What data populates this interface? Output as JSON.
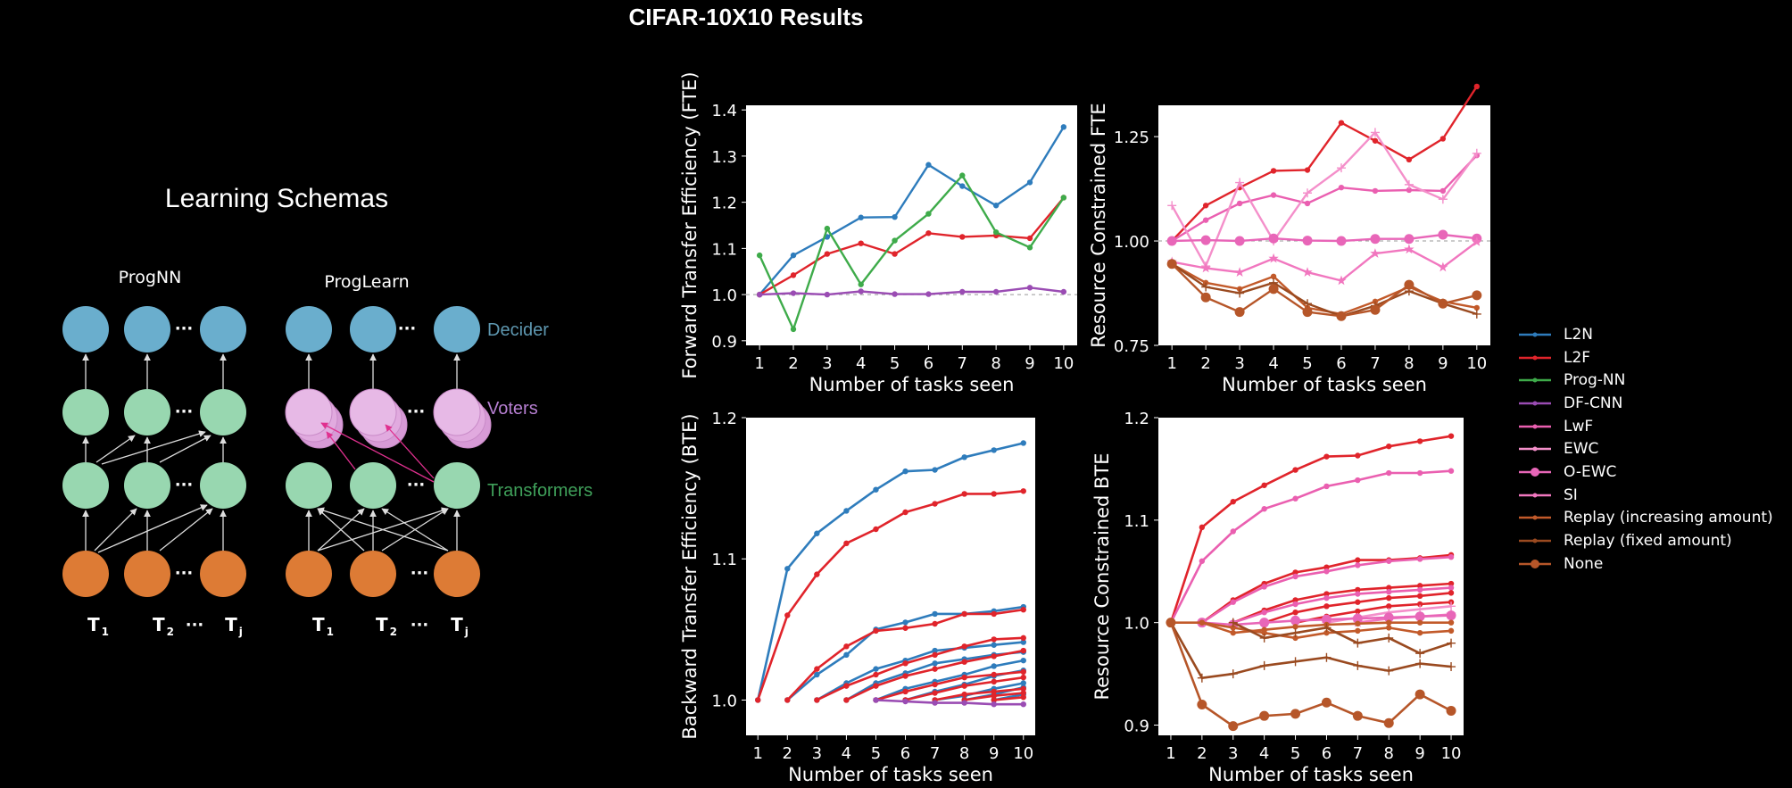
{
  "title": "CIFAR-10X10 Results",
  "schema": {
    "heading": "Learning Schemas",
    "left_label": "ProgNN",
    "right_label": "ProgLearn",
    "ellipsis": "···",
    "tasks": [
      {
        "base": "T",
        "sub": "1"
      },
      {
        "base": "T",
        "sub": "2"
      },
      {
        "base": "T",
        "sub": "j"
      }
    ],
    "layers": [
      {
        "label": "Decider",
        "color": "#5e97b0"
      },
      {
        "label": "Voters",
        "color": "#b67fd1"
      },
      {
        "label": "Transformers",
        "color": "#3fa05a"
      }
    ],
    "node_colors": {
      "decider": "#6aaecd",
      "voter": "#e7b9e6",
      "transformer": "#98d7b0",
      "task": "#dd7b35"
    }
  },
  "chart_data": [
    {
      "type": "line",
      "ylabel": "Forward Transfer Efficiency (FTE)",
      "xlabel": "Number of tasks seen",
      "x": [
        1,
        2,
        3,
        4,
        5,
        6,
        7,
        8,
        9,
        10
      ],
      "xlim": [
        0.6,
        10.4
      ],
      "ylim": [
        0.89,
        1.41
      ],
      "yticks": [
        0.9,
        1.0,
        1.1,
        1.2,
        1.3,
        1.4
      ],
      "ytick_labels": [
        "0.9",
        "1.0",
        "1.1",
        "1.2",
        "1.3",
        "1.4"
      ],
      "baseline": 1.0,
      "series": [
        {
          "name": "L2N",
          "color": "#2e7cbc",
          "values": [
            1.0,
            1.085,
            1.125,
            1.167,
            1.168,
            1.281,
            1.235,
            1.193,
            1.243,
            1.363
          ]
        },
        {
          "name": "L2F",
          "color": "#e0242b",
          "values": [
            1.0,
            1.042,
            1.088,
            1.111,
            1.088,
            1.133,
            1.125,
            1.128,
            1.122,
            1.21
          ]
        },
        {
          "name": "Prog-NN",
          "color": "#3eab4a",
          "values": [
            1.085,
            0.925,
            1.143,
            1.022,
            1.117,
            1.175,
            1.258,
            1.135,
            1.102,
            1.21
          ]
        },
        {
          "name": "DF-CNN",
          "color": "#9a4cb3",
          "values": [
            1.0,
            1.003,
            1.0,
            1.007,
            1.001,
            1.001,
            1.006,
            1.006,
            1.015,
            1.006
          ]
        }
      ]
    },
    {
      "type": "line",
      "ylabel": "Resource Constrained FTE",
      "xlabel": "Number of tasks seen",
      "x": [
        1,
        2,
        3,
        4,
        5,
        6,
        7,
        8,
        9,
        10
      ],
      "xlim": [
        0.6,
        10.4
      ],
      "ylim": [
        0.75,
        1.325
      ],
      "yticks": [
        0.75,
        1.0,
        1.25
      ],
      "ytick_labels": [
        "0.75",
        "1.00",
        "1.25"
      ],
      "baseline": 1.0,
      "series": [
        {
          "name": "L2F",
          "color": "#e0242b",
          "values": [
            1.0,
            1.085,
            1.128,
            1.168,
            1.17,
            1.283,
            1.24,
            1.195,
            1.245,
            1.37
          ]
        },
        {
          "name": "LwF",
          "color": "#ea5fb0",
          "values": [
            1.0,
            1.05,
            1.09,
            1.11,
            1.09,
            1.128,
            1.12,
            1.122,
            1.12,
            1.205
          ]
        },
        {
          "name": "EWC",
          "color": "#f48fca",
          "values": [
            1.085,
            0.94,
            1.14,
            1.0,
            1.115,
            1.175,
            1.26,
            1.135,
            1.1,
            1.21
          ]
        },
        {
          "name": "O-EWC",
          "color": "#e866b8",
          "values": [
            1.0,
            1.002,
            1.0,
            1.006,
            1.001,
            1.0,
            1.005,
            1.005,
            1.015,
            1.006
          ]
        },
        {
          "name": "SI",
          "color": "#f177bf",
          "values": [
            0.95,
            0.935,
            0.925,
            0.958,
            0.925,
            0.905,
            0.97,
            0.98,
            0.937,
            0.998
          ]
        },
        {
          "name": "Replay (increasing amount)",
          "color": "#c25a2a",
          "values": [
            0.945,
            0.9,
            0.885,
            0.915,
            0.84,
            0.825,
            0.855,
            0.89,
            0.855,
            0.84
          ]
        },
        {
          "name": "Replay (fixed amount)",
          "color": "#9a4a20",
          "values": [
            0.945,
            0.89,
            0.875,
            0.9,
            0.85,
            0.82,
            0.845,
            0.88,
            0.85,
            0.825
          ]
        },
        {
          "name": "None",
          "color": "#b65629",
          "values": [
            0.945,
            0.865,
            0.83,
            0.885,
            0.83,
            0.82,
            0.835,
            0.895,
            0.85,
            0.87
          ]
        }
      ]
    },
    {
      "type": "line",
      "ylabel": "Backward Transfer Efficiency (BTE)",
      "xlabel": "Number of tasks seen",
      "x": [
        1,
        2,
        3,
        4,
        5,
        6,
        7,
        8,
        9,
        10
      ],
      "xlim": [
        0.6,
        10.4
      ],
      "ylim": [
        0.975,
        1.2
      ],
      "yticks": [
        1.0,
        1.1,
        1.2
      ],
      "ytick_labels": [
        "1.0",
        "1.1",
        "1.2"
      ],
      "series": [
        {
          "name": "L2N",
          "color": "#2e7cbc",
          "values": [
            1.0,
            1.093,
            1.118,
            1.134,
            1.149,
            1.162,
            1.163,
            1.172,
            1.177,
            1.182
          ]
        },
        {
          "name": "L2N",
          "color": "#2e7cbc",
          "values": [
            null,
            1.0,
            1.018,
            1.032,
            1.05,
            1.055,
            1.061,
            1.061,
            1.063,
            1.066
          ]
        },
        {
          "name": "L2N",
          "color": "#2e7cbc",
          "values": [
            null,
            null,
            1.0,
            1.012,
            1.022,
            1.028,
            1.035,
            1.037,
            1.039,
            1.041
          ]
        },
        {
          "name": "L2N",
          "color": "#2e7cbc",
          "values": [
            null,
            null,
            null,
            1.0,
            1.012,
            1.019,
            1.026,
            1.029,
            1.032,
            1.034
          ]
        },
        {
          "name": "L2N",
          "color": "#2e7cbc",
          "values": [
            null,
            null,
            null,
            null,
            1.0,
            1.008,
            1.013,
            1.018,
            1.024,
            1.028
          ]
        },
        {
          "name": "L2N",
          "color": "#2e7cbc",
          "values": [
            null,
            null,
            null,
            null,
            null,
            1.0,
            1.006,
            1.011,
            1.017,
            1.021
          ]
        },
        {
          "name": "L2N",
          "color": "#2e7cbc",
          "values": [
            null,
            null,
            null,
            null,
            null,
            null,
            1.0,
            1.003,
            1.008,
            1.012
          ]
        },
        {
          "name": "L2N",
          "color": "#2e7cbc",
          "values": [
            null,
            null,
            null,
            null,
            null,
            null,
            null,
            1.0,
            1.004,
            1.009
          ]
        },
        {
          "name": "L2N",
          "color": "#2e7cbc",
          "values": [
            null,
            null,
            null,
            null,
            null,
            null,
            null,
            null,
            1.0,
            1.004
          ]
        },
        {
          "name": "L2F",
          "color": "#e0242b",
          "values": [
            1.0,
            1.06,
            1.089,
            1.111,
            1.121,
            1.133,
            1.139,
            1.146,
            1.146,
            1.148
          ]
        },
        {
          "name": "L2F",
          "color": "#e0242b",
          "values": [
            null,
            1.0,
            1.022,
            1.038,
            1.049,
            1.051,
            1.054,
            1.061,
            1.061,
            1.064
          ]
        },
        {
          "name": "L2F",
          "color": "#e0242b",
          "values": [
            null,
            null,
            1.0,
            1.01,
            1.018,
            1.026,
            1.032,
            1.038,
            1.043,
            1.044
          ]
        },
        {
          "name": "L2F",
          "color": "#e0242b",
          "values": [
            null,
            null,
            null,
            1.0,
            1.01,
            1.017,
            1.022,
            1.027,
            1.031,
            1.035
          ]
        },
        {
          "name": "L2F",
          "color": "#e0242b",
          "values": [
            null,
            null,
            null,
            null,
            1.0,
            1.006,
            1.011,
            1.016,
            1.018,
            1.02
          ]
        },
        {
          "name": "L2F",
          "color": "#e0242b",
          "values": [
            null,
            null,
            null,
            null,
            null,
            1.0,
            1.005,
            1.01,
            1.013,
            1.016
          ]
        },
        {
          "name": "L2F",
          "color": "#e0242b",
          "values": [
            null,
            null,
            null,
            null,
            null,
            null,
            1.0,
            1.004,
            1.006,
            1.008
          ]
        },
        {
          "name": "L2F",
          "color": "#e0242b",
          "values": [
            null,
            null,
            null,
            null,
            null,
            null,
            null,
            1.0,
            1.003,
            1.005
          ]
        },
        {
          "name": "L2F",
          "color": "#e0242b",
          "values": [
            null,
            null,
            null,
            null,
            null,
            null,
            null,
            null,
            1.0,
            1.002
          ]
        },
        {
          "name": "DF-CNN",
          "color": "#9a4cb3",
          "values": [
            null,
            null,
            null,
            null,
            1.0,
            0.999,
            0.998,
            0.998,
            0.997,
            0.997
          ]
        }
      ]
    },
    {
      "type": "line",
      "ylabel": "Resource Constrained BTE",
      "xlabel": "Number of tasks seen",
      "x": [
        1,
        2,
        3,
        4,
        5,
        6,
        7,
        8,
        9,
        10
      ],
      "xlim": [
        0.6,
        10.4
      ],
      "ylim": [
        0.89,
        1.2
      ],
      "yticks": [
        0.9,
        1.0,
        1.1,
        1.2
      ],
      "ytick_labels": [
        "0.9",
        "1.0",
        "1.1",
        "1.2"
      ],
      "series": [
        {
          "name": "L2F",
          "color": "#e0242b",
          "values": [
            1.0,
            1.093,
            1.118,
            1.134,
            1.149,
            1.162,
            1.163,
            1.172,
            1.177,
            1.182
          ]
        },
        {
          "name": "LwF",
          "color": "#ea5fb0",
          "values": [
            1.0,
            1.06,
            1.089,
            1.111,
            1.121,
            1.133,
            1.139,
            1.146,
            1.146,
            1.148
          ]
        },
        {
          "name": "L2F",
          "color": "#e0242b",
          "values": [
            null,
            1.0,
            1.022,
            1.038,
            1.049,
            1.054,
            1.061,
            1.061,
            1.063,
            1.066
          ]
        },
        {
          "name": "LwF",
          "color": "#ea5fb0",
          "values": [
            null,
            1.0,
            1.02,
            1.035,
            1.045,
            1.05,
            1.056,
            1.06,
            1.062,
            1.064
          ]
        },
        {
          "name": "L2F",
          "color": "#e0242b",
          "values": [
            null,
            null,
            1.0,
            1.012,
            1.022,
            1.028,
            1.032,
            1.034,
            1.036,
            1.038
          ]
        },
        {
          "name": "LwF",
          "color": "#ea5fb0",
          "values": [
            null,
            null,
            1.0,
            1.01,
            1.018,
            1.024,
            1.028,
            1.03,
            1.032,
            1.034
          ]
        },
        {
          "name": "L2F",
          "color": "#e0242b",
          "values": [
            null,
            null,
            null,
            1.0,
            1.01,
            1.016,
            1.02,
            1.024,
            1.026,
            1.029
          ]
        },
        {
          "name": "L2F",
          "color": "#e0242b",
          "values": [
            null,
            null,
            null,
            null,
            1.0,
            1.006,
            1.011,
            1.016,
            1.018,
            1.02
          ]
        },
        {
          "name": "EWC",
          "color": "#f48fca",
          "values": [
            null,
            null,
            null,
            null,
            null,
            1.0,
            1.005,
            1.01,
            1.013,
            1.016
          ]
        },
        {
          "name": "SI",
          "color": "#f177bf",
          "values": [
            null,
            null,
            null,
            null,
            null,
            null,
            1.0,
            1.004,
            1.006,
            1.008
          ]
        },
        {
          "name": "O-EWC",
          "color": "#e866b8",
          "values": [
            null,
            1.0,
            0.998,
            1.0,
            1.002,
            1.003,
            1.004,
            1.005,
            1.006,
            1.007
          ]
        },
        {
          "name": "Replay (increasing amount)",
          "color": "#c25a2a",
          "values": [
            1.0,
            1.0,
            0.99,
            0.993,
            0.996,
            0.998,
            0.999,
            1.0,
            1.0,
            1.0
          ]
        },
        {
          "name": "Replay (increasing amount)",
          "color": "#c25a2a",
          "values": [
            null,
            1.0,
            0.995,
            0.99,
            0.985,
            0.99,
            0.992,
            0.995,
            0.99,
            0.992
          ]
        },
        {
          "name": "Replay (fixed amount)",
          "color": "#9a4a20",
          "values": [
            null,
            null,
            1.0,
            0.985,
            0.99,
            0.995,
            0.98,
            0.985,
            0.97,
            0.98
          ]
        },
        {
          "name": "Replay (fixed amount)",
          "color": "#9a4a20",
          "values": [
            1.0,
            0.946,
            0.95,
            0.958,
            0.962,
            0.966,
            0.958,
            0.953,
            0.96,
            0.957
          ]
        },
        {
          "name": "None",
          "color": "#b65629",
          "values": [
            1.0,
            0.92,
            0.899,
            0.909,
            0.911,
            0.922,
            0.909,
            0.902,
            0.93,
            0.914
          ]
        }
      ]
    }
  ],
  "legend": [
    {
      "label": "L2N",
      "color": "#2e7cbc",
      "marker": "dot"
    },
    {
      "label": "L2F",
      "color": "#e0242b",
      "marker": "dot"
    },
    {
      "label": "Prog-NN",
      "color": "#3eab4a",
      "marker": "dot"
    },
    {
      "label": "DF-CNN",
      "color": "#9a4cb3",
      "marker": "dot"
    },
    {
      "label": "LwF",
      "color": "#ea5fb0",
      "marker": "dot"
    },
    {
      "label": "EWC",
      "color": "#f48fca",
      "marker": "plus"
    },
    {
      "label": "O-EWC",
      "color": "#e866b8",
      "marker": "bigdot"
    },
    {
      "label": "SI",
      "color": "#f177bf",
      "marker": "star"
    },
    {
      "label": "Replay (increasing amount)",
      "color": "#c25a2a",
      "marker": "dot"
    },
    {
      "label": "Replay (fixed amount)",
      "color": "#9a4a20",
      "marker": "plus"
    },
    {
      "label": "None",
      "color": "#b65629",
      "marker": "bigdot"
    }
  ]
}
